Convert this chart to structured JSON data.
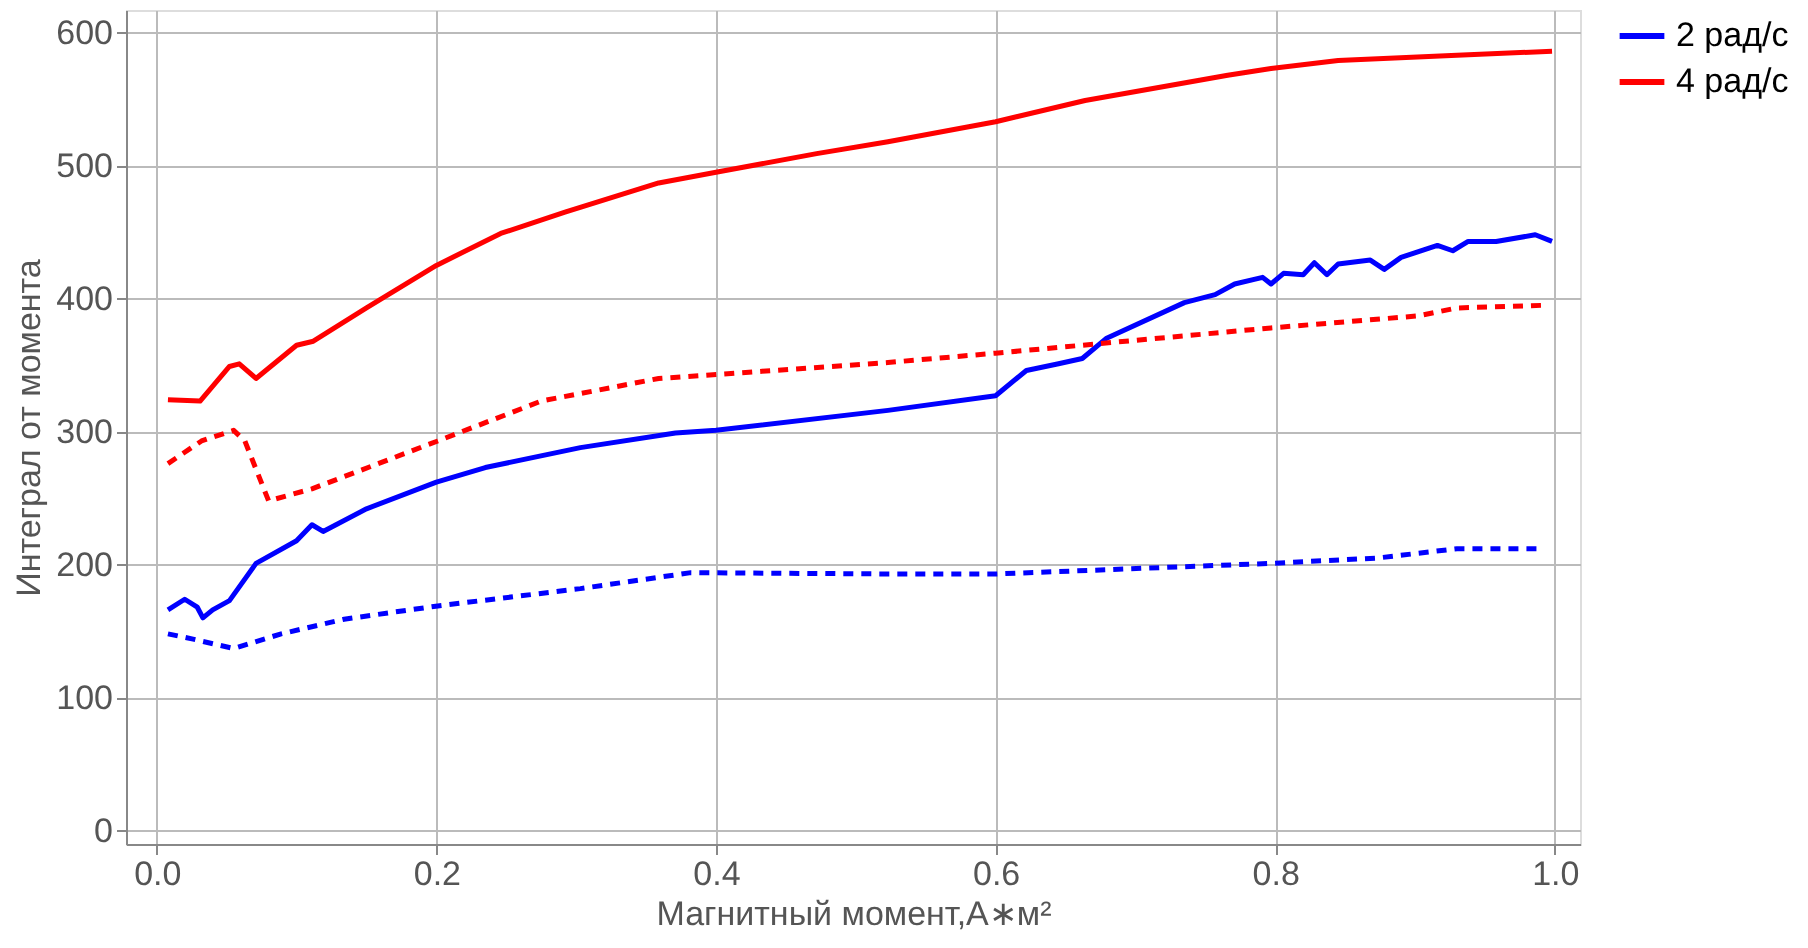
{
  "chart_data": {
    "type": "line",
    "xlabel": "Магнитный момент,A∗м²",
    "ylabel": "Интеграл от момента",
    "xlim": [
      -0.022,
      1.018
    ],
    "ylim": [
      -10,
      617
    ],
    "xticks": [
      {
        "value": 0,
        "label": "0.0"
      },
      {
        "value": 0.2,
        "label": "0.2"
      },
      {
        "value": 0.4,
        "label": "0.4"
      },
      {
        "value": 0.6,
        "label": "0.6"
      },
      {
        "value": 0.8,
        "label": "0.8"
      },
      {
        "value": 1,
        "label": "1.0"
      }
    ],
    "yticks": [
      0,
      100,
      200,
      300,
      400,
      500,
      600
    ],
    "grid": true,
    "legend": "right",
    "marker": "none",
    "series": [
      {
        "name": "2 рад/с",
        "color": "#0000ff",
        "line_style": "solid",
        "x": [
          0.008,
          0.02,
          0.029,
          0.033,
          0.04,
          0.052,
          0.071,
          0.1,
          0.111,
          0.119,
          0.15,
          0.2,
          0.235,
          0.303,
          0.371,
          0.4,
          0.523,
          0.6,
          0.622,
          0.645,
          0.662,
          0.679,
          0.735,
          0.757,
          0.771,
          0.791,
          0.797,
          0.806,
          0.82,
          0.828,
          0.837,
          0.845,
          0.868,
          0.878,
          0.89,
          0.916,
          0.927,
          0.938,
          0.958,
          0.986,
          0.998
        ],
        "values": [
          166,
          174,
          168,
          160,
          166,
          173,
          201,
          218,
          230,
          225,
          242,
          262,
          273,
          288,
          299,
          301,
          316,
          327,
          346,
          351,
          355,
          370,
          397,
          403,
          411,
          416,
          411,
          419,
          418,
          427,
          418,
          426,
          429,
          422,
          431,
          440,
          436,
          443,
          443,
          448,
          443
        ]
      },
      {
        "name": "4 рад/с",
        "color": "#ff0000",
        "line_style": "solid",
        "x": [
          0.008,
          0.031,
          0.052,
          0.059,
          0.071,
          0.1,
          0.112,
          0.15,
          0.2,
          0.246,
          0.292,
          0.359,
          0.4,
          0.472,
          0.523,
          0.6,
          0.664,
          0.766,
          0.797,
          0.845,
          0.93,
          0.998
        ],
        "values": [
          324,
          323,
          349,
          351,
          340,
          365,
          368,
          393,
          425,
          449,
          465,
          487,
          495,
          509,
          518,
          533,
          549,
          568,
          573,
          579,
          583,
          586
        ]
      },
      {
        "color": "#0000ff",
        "line_style": "dashed",
        "x": [
          0.008,
          0.026,
          0.055,
          0.089,
          0.134,
          0.201,
          0.303,
          0.382,
          0.523,
          0.6,
          0.797,
          0.873,
          0.93,
          0.989
        ],
        "values": [
          148,
          144,
          137,
          148,
          159,
          169,
          182,
          194,
          193,
          193,
          201,
          205,
          212,
          212
        ]
      },
      {
        "color": "#ff0000",
        "line_style": "dashed",
        "x": [
          0.008,
          0.032,
          0.055,
          0.063,
          0.08,
          0.111,
          0.201,
          0.275,
          0.359,
          0.523,
          0.6,
          0.797,
          0.902,
          0.93,
          0.992
        ],
        "values": [
          276,
          293,
          301,
          293,
          248,
          257,
          293,
          323,
          340,
          352,
          359,
          378,
          387,
          393,
          395
        ]
      }
    ]
  }
}
